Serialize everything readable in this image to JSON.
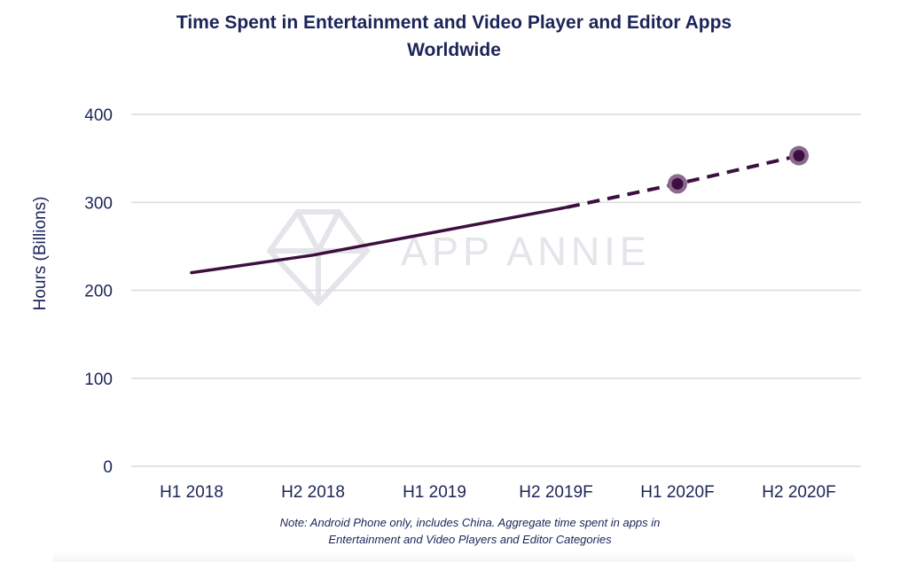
{
  "chart_data": {
    "type": "line",
    "title_line1": "Time Spent in Entertainment and Video Player and Editor Apps",
    "title_line2": "Worldwide",
    "ylabel": "Hours (Billions)",
    "xlabel": "",
    "categories": [
      "H1 2018",
      "H2 2018",
      "H1 2019",
      "H2 2019F",
      "H1 2020F",
      "H2 2020F"
    ],
    "series": [
      {
        "name": "Time Spent",
        "values": [
          220,
          240,
          266,
          292,
          321,
          353
        ],
        "actual_through_index": 3,
        "forecast_markers": [
          4,
          5
        ]
      }
    ],
    "ylim": [
      0,
      400
    ],
    "yticks": [
      "0",
      "100",
      "200",
      "300",
      "400"
    ],
    "ytick_values": [
      0,
      100,
      200,
      300,
      400
    ],
    "grid": true,
    "note_line1": "Note: Android Phone only, includes China. Aggregate time spent in apps in",
    "note_line2": "Entertainment and Video Players and Editor Categories",
    "watermark": "APP ANNIE",
    "colors": {
      "line": "#3d0f40",
      "marker_halo": "#8b6a8d",
      "text": "#1b2559",
      "grid": "#dcdcdc",
      "watermark": "#e4e4ea"
    }
  }
}
